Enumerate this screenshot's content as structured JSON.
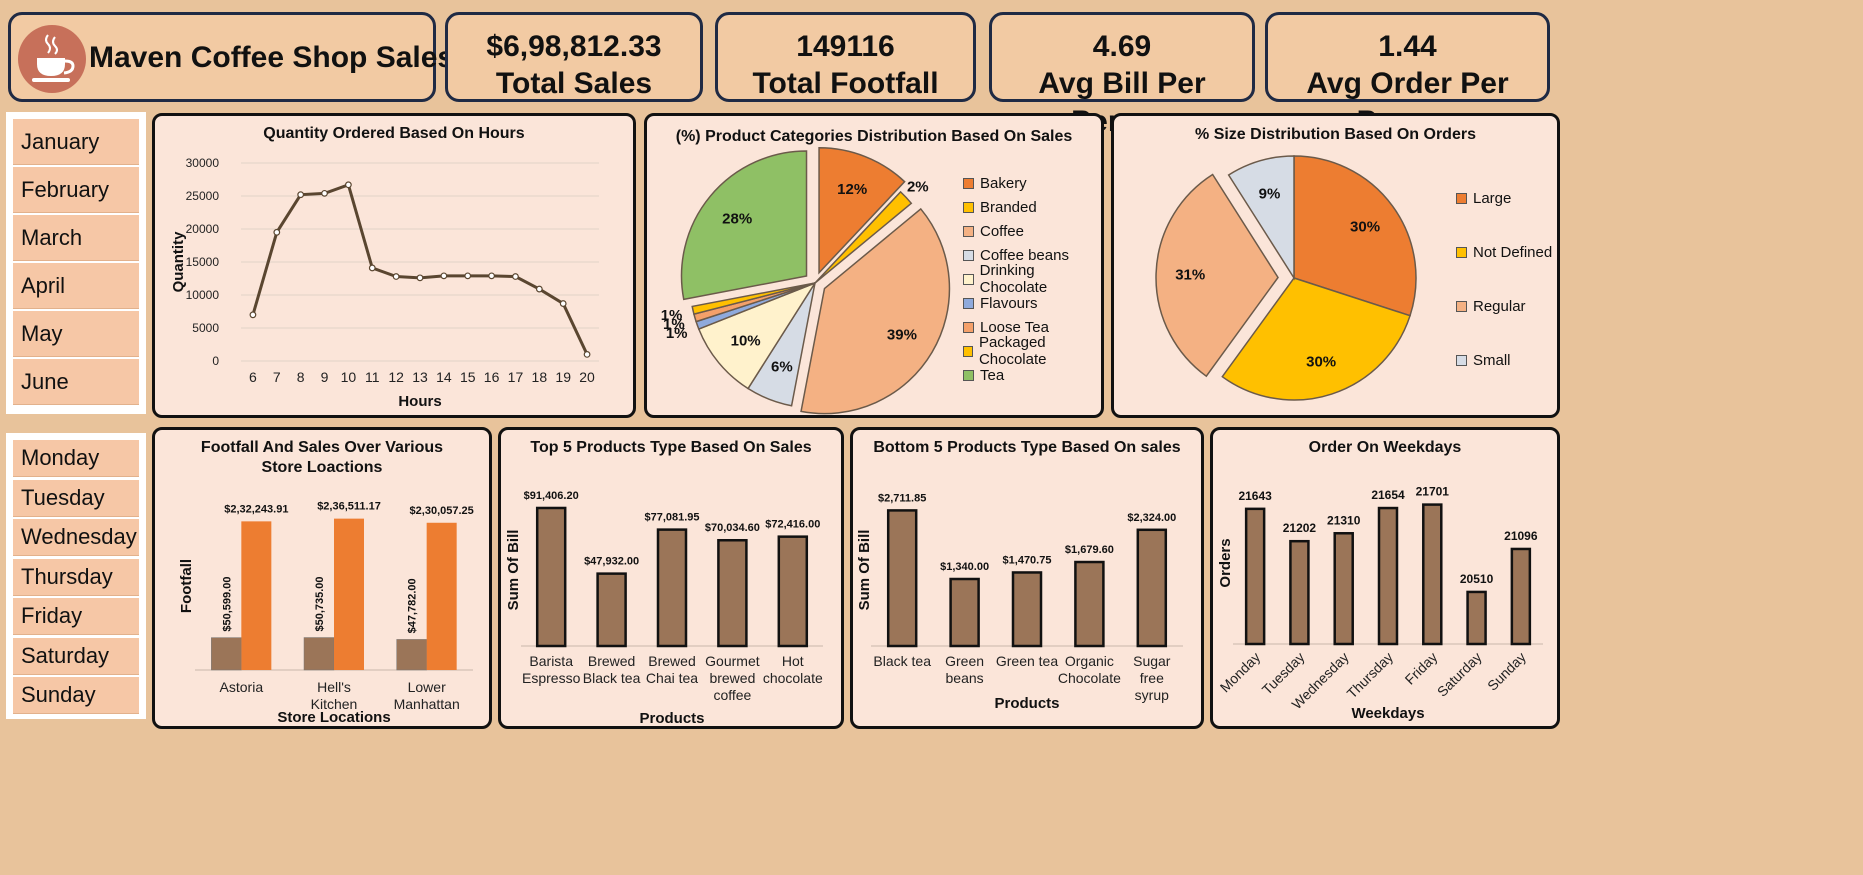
{
  "header": {
    "title": "Maven Coffee Shop Sales",
    "logo": "coffee-cup-icon"
  },
  "kpis": [
    {
      "value": "$6,98,812.33",
      "label": "Total Sales"
    },
    {
      "value": "149116",
      "label": "Total Footfall"
    },
    {
      "value": "4.69",
      "label": "Avg Bill Per Person"
    },
    {
      "value": "1.44",
      "label": "Avg Order Per Person"
    }
  ],
  "slicers": {
    "months": [
      "January",
      "February",
      "March",
      "April",
      "May",
      "June"
    ],
    "weekdays": [
      "Monday",
      "Tuesday",
      "Wednesday",
      "Thursday",
      "Friday",
      "Saturday",
      "Sunday"
    ]
  },
  "colors": {
    "brown": "#9b7558",
    "orange": "#ed7d31",
    "line": "#5a4630"
  },
  "chart_data": [
    {
      "id": "hours",
      "type": "line",
      "title": "Quantity Ordered Based On Hours",
      "xlabel": "Hours",
      "ylabel": "Quantity",
      "x": [
        "6",
        "7",
        "8",
        "9",
        "10",
        "11",
        "12",
        "13",
        "14",
        "15",
        "16",
        "17",
        "18",
        "19",
        "20"
      ],
      "values": [
        7000,
        19500,
        25200,
        25400,
        26700,
        14100,
        12800,
        12600,
        12900,
        12900,
        12900,
        12800,
        10900,
        8700,
        1000
      ],
      "ylim": [
        0,
        30000
      ],
      "yticks": [
        "0",
        "5000",
        "10000",
        "15000",
        "20000",
        "25000",
        "30000"
      ],
      "grid": true
    },
    {
      "id": "categories",
      "type": "pie",
      "title": "(%) Product Categories Distribution Based On Sales",
      "labels": [
        "Bakery",
        "Branded",
        "Coffee",
        "Coffee beans",
        "Drinking Chocolate",
        "Flavours",
        "Loose Tea",
        "Packaged Chocolate",
        "Tea"
      ],
      "values": [
        12,
        2,
        39,
        6,
        10,
        1,
        1,
        1,
        28
      ],
      "value_labels": [
        "12%",
        "2%",
        "39%",
        "6%",
        "10%",
        "1%",
        "1%",
        "1%",
        "28%"
      ],
      "colors": [
        "#ed7d31",
        "#ffc000",
        "#f4b183",
        "#d6dce5",
        "#fff2cc",
        "#8faadc",
        "#f4a06a",
        "#ffc000",
        "#8fc065"
      ],
      "legend": "right"
    },
    {
      "id": "sizes",
      "type": "pie",
      "title": "% Size Distribution Based On Orders",
      "labels": [
        "Large",
        "Not Defined",
        "Regular",
        "Small"
      ],
      "values": [
        30,
        30,
        31,
        9
      ],
      "value_labels": [
        "30%",
        "30%",
        "31%",
        "9%"
      ],
      "colors": [
        "#ed7d31",
        "#ffc000",
        "#f4b183",
        "#d6dce5"
      ],
      "legend": "right"
    },
    {
      "id": "stores",
      "type": "bar",
      "title": "Footfall And Sales Over Various Store Loactions",
      "xlabel": "Store Locations",
      "ylabel": "Footfall",
      "categories": [
        "Astoria",
        "Hell's Kitchen",
        "Lower Manhattan"
      ],
      "series": [
        {
          "values": [
            50599,
            50735,
            47782
          ],
          "labels": [
            "$50,599.00",
            "$50,735.00",
            "$47,782.00"
          ]
        },
        {
          "values": [
            232243.91,
            236511.17,
            230057.25
          ],
          "labels": [
            "$2,32,243.91",
            "$2,36,511.17",
            "$2,30,057.25"
          ]
        }
      ],
      "ylim": [
        0,
        250000
      ]
    },
    {
      "id": "top5",
      "type": "bar",
      "title": "Top 5 Products Type Based On Sales",
      "xlabel": "Products",
      "ylabel": "Sum Of Bill",
      "categories": [
        "Barista Espresso",
        "Brewed Black tea",
        "Brewed Chai tea",
        "Gourmet brewed coffee",
        "Hot chocolate"
      ],
      "values": [
        91406.2,
        47932.0,
        77081.95,
        70034.6,
        72416.0
      ],
      "value_labels": [
        "$91,406.20",
        "$47,932.00",
        "$77,081.95",
        "$70,034.60",
        "$72,416.00"
      ],
      "ylim": [
        0,
        100000
      ]
    },
    {
      "id": "bottom5",
      "type": "bar",
      "title": "Bottom 5 Products Type Based On sales",
      "xlabel": "Products",
      "ylabel": "Sum Of Bill",
      "categories": [
        "Black tea",
        "Green beans",
        "Green tea",
        "Organic Chocolate",
        "Sugar free syrup"
      ],
      "values": [
        2711.85,
        1340.0,
        1470.75,
        1679.6,
        2324.0
      ],
      "value_labels": [
        "$2,711.85",
        "$1,340.00",
        "$1,470.75",
        "$1,679.60",
        "$2,324.00"
      ],
      "ylim": [
        0,
        3000
      ]
    },
    {
      "id": "weekdays",
      "type": "bar",
      "title": "Order On Weekdays",
      "xlabel": "Weekdays",
      "ylabel": "Orders",
      "categories": [
        "Monday",
        "Tuesday",
        "Wednesday",
        "Thursday",
        "Friday",
        "Saturday",
        "Sunday"
      ],
      "values": [
        21643,
        21202,
        21310,
        21654,
        21701,
        20510,
        21096
      ],
      "value_labels": [
        "21643",
        "21202",
        "21310",
        "21654",
        "21701",
        "20510",
        "21096"
      ],
      "ylim": [
        19800,
        21900
      ]
    }
  ]
}
